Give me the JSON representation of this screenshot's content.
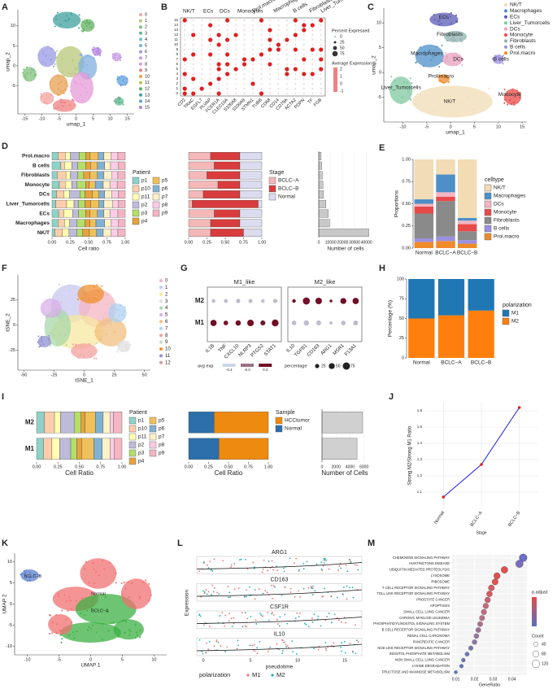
{
  "letters": [
    "A",
    "B",
    "C",
    "D",
    "E",
    "F",
    "G",
    "H",
    "I",
    "J",
    "K",
    "L",
    "M"
  ],
  "A": {
    "xlabel": "umap_1",
    "ylabel": "umap_2",
    "xlim": [
      -17,
      17
    ],
    "ylim": [
      -12,
      14
    ],
    "xticks": [
      -15,
      -10,
      -5,
      0,
      5,
      10,
      15
    ],
    "yticks": [
      -5,
      0,
      5,
      10
    ],
    "clusters": [
      "0",
      "1",
      "2",
      "3",
      "4",
      "5",
      "6",
      "7",
      "8",
      "9",
      "10",
      "11",
      "12",
      "13",
      "14",
      "15"
    ],
    "colors": [
      "#f4a6a0",
      "#b8c77a",
      "#7fbf7b",
      "#5fb88f",
      "#6cc3c9",
      "#7fb0e0",
      "#9b9be6",
      "#c79be6",
      "#e69bd6",
      "#f08080",
      "#e6a050",
      "#c0c040",
      "#60b060",
      "#40a0a0",
      "#60a0e0",
      "#b080e0"
    ]
  },
  "B": {
    "groups": [
      "NK/T",
      "ECs",
      "DCs",
      "Monocytes",
      "Prol.macro",
      "Macrophages",
      "B cells",
      "Fibroblasts",
      "Liver_Tumorcells"
    ],
    "genes": [
      "CD2",
      "TRAC",
      "EGFL7",
      "PLVAP",
      "FCER1A",
      "CLEC10A",
      "S100A8",
      "S100A9",
      "STMN1",
      "TUBB",
      "CD68",
      "CD14",
      "CD79A",
      "ACTA2",
      "PDPN",
      "TF",
      "FGB"
    ],
    "rows": [
      "0",
      "1",
      "2",
      "3",
      "4",
      "5",
      "6",
      "7",
      "8",
      "9",
      "10",
      "11",
      "12",
      "13",
      "14",
      "15"
    ],
    "size_title": "Percent Expressed",
    "size_ticks": [
      "0",
      "25",
      "50",
      "75"
    ],
    "color_title": "Average Expression",
    "color_ticks": [
      "2",
      "1",
      "0",
      "-1"
    ]
  },
  "C": {
    "xlabel": "umap_1",
    "ylabel": "umap_2",
    "xlim": [
      -14,
      16
    ],
    "ylim": [
      -10,
      13
    ],
    "xticks": [
      -10,
      -5,
      0,
      5,
      10,
      15
    ],
    "yticks": [
      -5,
      0,
      5,
      10
    ],
    "celltypes": [
      "NK/T",
      "Macrophages",
      "ECs",
      "Liver_Tumorcells",
      "DCs",
      "Monocyte",
      "Fibroblasts",
      "B cells",
      "Prol.macro"
    ],
    "colors": [
      "#f1dcb6",
      "#4e8fc7",
      "#5b5bb5",
      "#7fc8a0",
      "#e8a0c0",
      "#e84a4a",
      "#8fb0b0",
      "#9b8fe0",
      "#f08a2a"
    ]
  },
  "F": {
    "xlabel": "tSNE_1",
    "ylabel": "tSNE_2",
    "xlim": [
      -55,
      55
    ],
    "ylim": [
      -45,
      50
    ],
    "xticks": [
      -50,
      -25,
      0,
      25,
      50
    ],
    "yticks": [
      -25,
      0,
      25
    ],
    "clusters": [
      "0",
      "1",
      "2",
      "3",
      "4",
      "5",
      "6",
      "7",
      "8",
      "9",
      "10",
      "11",
      "12"
    ],
    "colors": [
      "#f4b6c2",
      "#c8c8f0",
      "#f8e8a0",
      "#e0e0e0",
      "#a8d8a8",
      "#d8b0e8",
      "#f0c080",
      "#b0d0f0",
      "#f4a0a0",
      "#c0e0c0",
      "#f09030",
      "#9090d0",
      "#d0a0a0"
    ]
  },
  "K": {
    "xlabel": "UMAP 1",
    "ylabel": "UMAP 2",
    "xlim": [
      -12,
      12
    ],
    "ylim": [
      -12,
      12
    ],
    "xticks": [
      -10,
      -5,
      0,
      5,
      10
    ],
    "yticks": [
      -10,
      -5,
      0,
      5,
      10
    ],
    "groups": [
      "BCLC−B",
      "Normal",
      "BCLC−A"
    ],
    "colors": [
      "#5b7fd0",
      "#f07070",
      "#3cb043"
    ]
  },
  "L": {
    "genes": [
      "ARG1",
      "CD163",
      "CSF1R",
      "IL10"
    ],
    "ylabel": "Expression",
    "xlabel": "pseudotime",
    "xticks": [
      "0",
      "5",
      "10",
      "15"
    ],
    "legend_title": "polarization",
    "groups": [
      "M1",
      "M2"
    ],
    "colors": [
      "#f07070",
      "#20b0b0"
    ]
  },
  "chart_data": [
    {
      "type": "stacked_bar",
      "ylabel": "Proportions",
      "legend_title": "celltype",
      "categories": [
        "Normal",
        "BCLC−A",
        "BCLC−B"
      ],
      "ylim": [
        0,
        1
      ],
      "yticks": [
        {
          "value": 0,
          "label": "0.00"
        },
        0.25,
        {
          "value": 0.5,
          "label": "0.50"
        },
        0.75,
        {
          "value": 1,
          "label": "1.00"
        }
      ],
      "series": [
        {
          "name": "NK/T",
          "color": "#f1dcb6",
          "values": [
            0.45,
            0.17,
            0.66
          ]
        },
        {
          "name": "Macrophages",
          "color": "#4e8fc7",
          "values": [
            0.05,
            0.2,
            0.03
          ]
        },
        {
          "name": "DCs",
          "color": "#f4b6c2",
          "values": [
            0.03,
            0.05,
            0.04
          ]
        },
        {
          "name": "Monocyte",
          "color": "#e84a4a",
          "values": [
            0.08,
            0.05,
            0.08
          ]
        },
        {
          "name": "Fibroblasts",
          "color": "#8a8a8a",
          "values": [
            0.28,
            0.4,
            0.1
          ]
        },
        {
          "name": "B cells",
          "color": "#9b8fe0",
          "values": [
            0.04,
            0.05,
            0.04
          ]
        },
        {
          "name": "Prol.macro",
          "color": "#f08a2a",
          "values": [
            0.07,
            0.08,
            0.05
          ]
        }
      ]
    },
    {
      "type": "stacked_bar",
      "ylabel": "Percentage (%)",
      "legend_title": "polarization",
      "categories": [
        "Normal",
        "BCLC−A",
        "BCLC−B"
      ],
      "ylim": [
        0,
        100
      ],
      "yticks": [
        0,
        25,
        50,
        75,
        100
      ],
      "series": [
        {
          "name": "M1",
          "color": "#1f77b4",
          "values": [
            50,
            46,
            40
          ]
        },
        {
          "name": "M2",
          "color": "#ff7f0e",
          "values": [
            50,
            54,
            60
          ]
        }
      ]
    },
    {
      "type": "line",
      "xlabel": "Stage",
      "ylabel": "Strong M2/Strong M1 Ratio",
      "categories": [
        "Normal",
        "BCLC−A",
        "BCLC−B"
      ],
      "values": [
        1.07,
        1.27,
        1.62
      ],
      "color": "#2020e0",
      "point_color": "#e02020",
      "ylim": [
        1.0,
        1.65
      ],
      "yticks": [
        1.1,
        1.2,
        1.3,
        1.4,
        1.5,
        1.6
      ],
      "grid": true
    },
    {
      "type": "dot_scatter",
      "xlabel": "GeneRatio",
      "xlim": [
        0.008,
        0.048
      ],
      "xticks": [
        0.01,
        0.02,
        0.03,
        0.04
      ],
      "categories": [
        "CHEMOKINE SIGNALING PATHWAY",
        "HUNTINGTONS DISEASE",
        "UBIQUITIN MEDIATED PROTEOLYSIS",
        "LYSOSOME",
        "RIBOSOME",
        "T CELL RECEPTOR SIGNALING PATHWAY",
        "TOLL LIKE RECEPTOR SIGNALING PATHWAY",
        "PROSTATE CANCER",
        "APOPTOSIS",
        "SMALL CELL LUNG CANCER",
        "CHRONIC MYELOID LEUKEMIA",
        "PHOSPHATIDYLINOSITOL SIGNALING SYSTEM",
        "B CELL RECEPTOR SIGNALING PATHWAY",
        "RENAL CELL CARCINOMA",
        "PANCREATIC CANCER",
        "NOD LIKE RECEPTOR SIGNALING PATHWAY",
        "INOSITOL PHOSPHATE METABOLISM",
        "NON SMALL CELL LUNG CANCER",
        "LYSINE DEGRADATION",
        "FRUCTOSE AND MANNOSE METABOLISM"
      ],
      "values": [
        0.046,
        0.044,
        0.036,
        0.032,
        0.031,
        0.029,
        0.028,
        0.027,
        0.026,
        0.025,
        0.024,
        0.023,
        0.022,
        0.021,
        0.02,
        0.018,
        0.016,
        0.014,
        0.013,
        0.01
      ],
      "sizes": [
        120,
        110,
        90,
        80,
        75,
        70,
        65,
        62,
        60,
        58,
        55,
        52,
        50,
        48,
        45,
        40,
        35,
        30,
        28,
        20
      ],
      "colors": [
        "#7070c8",
        "#7a6cc0",
        "#e05050",
        "#e05050",
        "#e25252",
        "#d85a60",
        "#d85a60",
        "#d06070",
        "#c86878",
        "#c06c80",
        "#b87088",
        "#b07090",
        "#a07498",
        "#9878a0",
        "#8878a8",
        "#7878b0",
        "#6c78b8",
        "#6478c0",
        "#5c78c4",
        "#5478c8"
      ],
      "legend_color_title": "p.adjust",
      "colorbar": [
        "#e64a4a",
        "#5b6fc4"
      ],
      "legend_size_title": "Count",
      "size_ticks": [
        40,
        80,
        120
      ]
    },
    {
      "type": "hbar_stack",
      "xlabel": "Cell ratio",
      "legend_title": "Patient",
      "categories": [
        "Prol.macro",
        "B cells",
        "Fibroblasts",
        "Monocyte",
        "DCs",
        "Liver_Tumorcells",
        "ECs",
        "Macrophages",
        "NK/T"
      ],
      "xlim": [
        0,
        1
      ],
      "xticks": [
        {
          "value": 0,
          "label": "0.00"
        },
        0.25,
        {
          "value": 0.5,
          "label": "0.50"
        },
        0.75,
        {
          "value": 1,
          "label": "1.00"
        }
      ],
      "series": [
        {
          "name": "p1",
          "color": "#8dd3c7",
          "values": [
            0.08,
            0.12,
            0.07,
            0.1,
            0.06,
            0.05,
            0.09,
            0.08,
            0.04
          ]
        },
        {
          "name": "p10",
          "color": "#fdcdac",
          "values": [
            0.1,
            0.05,
            0.12,
            0.08,
            0.1,
            0.15,
            0.07,
            0.09,
            0.1
          ]
        },
        {
          "name": "p11",
          "color": "#ffffb3",
          "values": [
            0.07,
            0.1,
            0.06,
            0.09,
            0.08,
            0.1,
            0.12,
            0.07,
            0.09
          ]
        },
        {
          "name": "p2",
          "color": "#bebada",
          "values": [
            0.12,
            0.08,
            0.1,
            0.07,
            0.14,
            0.06,
            0.08,
            0.1,
            0.11
          ]
        },
        {
          "name": "p3",
          "color": "#b3de69",
          "values": [
            0.09,
            0.11,
            0.08,
            0.12,
            0.07,
            0.09,
            0.1,
            0.11,
            0.08
          ]
        },
        {
          "name": "p4",
          "color": "#e6a23c",
          "values": [
            0.06,
            0.07,
            0.09,
            0.05,
            0.1,
            0.08,
            0.06,
            0.07,
            0.09
          ]
        },
        {
          "name": "p5",
          "color": "#f0c05a",
          "values": [
            0.11,
            0.09,
            0.1,
            0.08,
            0.09,
            0.11,
            0.1,
            0.08,
            0.1
          ]
        },
        {
          "name": "p6",
          "color": "#80b1d3",
          "values": [
            0.08,
            0.1,
            0.09,
            0.11,
            0.08,
            0.07,
            0.09,
            0.12,
            0.09
          ]
        },
        {
          "name": "p7",
          "color": "#fff2c8",
          "values": [
            0.1,
            0.08,
            0.11,
            0.09,
            0.1,
            0.12,
            0.08,
            0.09,
            0.11
          ]
        },
        {
          "name": "p8",
          "color": "#fccde5",
          "values": [
            0.09,
            0.11,
            0.08,
            0.1,
            0.09,
            0.08,
            0.11,
            0.1,
            0.09
          ]
        },
        {
          "name": "p9",
          "color": "#f4b6c2",
          "values": [
            0.1,
            0.09,
            0.1,
            0.11,
            0.09,
            0.09,
            0.1,
            0.09,
            0.1
          ]
        }
      ]
    },
    {
      "type": "hbar_stack",
      "legend_title": "Stage",
      "xlim": [
        0,
        1
      ],
      "xticks": [
        {
          "value": 0,
          "label": "0.00"
        },
        0.25,
        {
          "value": 0.5,
          "label": "0.50"
        },
        0.75,
        {
          "value": 1,
          "label": "1.00"
        }
      ],
      "series": [
        {
          "name": "BCLC−A",
          "color": "#f4b8b8",
          "values": [
            0.3,
            0.35,
            0.25,
            0.4,
            0.2,
            0.05,
            0.35,
            0.3,
            0.3
          ]
        },
        {
          "name": "BCLC−B",
          "color": "#d83c3c",
          "values": [
            0.4,
            0.35,
            0.45,
            0.3,
            0.5,
            0.9,
            0.35,
            0.4,
            0.45
          ]
        },
        {
          "name": "Normal",
          "color": "#dcdcf0",
          "values": [
            0.3,
            0.3,
            0.3,
            0.3,
            0.3,
            0.05,
            0.3,
            0.3,
            0.25
          ]
        }
      ]
    },
    {
      "type": "hbar",
      "xlabel": "Number of cells",
      "color": "#c8c8c8",
      "xlim": [
        0,
        45000
      ],
      "xticks": [
        0,
        10000,
        20000,
        30000,
        40000
      ],
      "values": [
        2000,
        2500,
        3000,
        3500,
        4000,
        6000,
        8000,
        9000,
        42000
      ]
    },
    {
      "type": "hbar_stack",
      "xlabel": "Cell Ratio",
      "legend_title": "Patient",
      "categories": [
        "M2",
        "M1"
      ],
      "xlim": [
        0,
        1
      ],
      "xticks": [
        {
          "value": 0,
          "label": "0.00"
        },
        0.25,
        {
          "value": 0.5,
          "label": "0.50"
        },
        0.75,
        {
          "value": 1,
          "label": "1.00"
        }
      ],
      "series": [
        {
          "name": "p1",
          "color": "#8dd3c7",
          "values": [
            0.09,
            0.08
          ]
        },
        {
          "name": "p10",
          "color": "#fdcdac",
          "values": [
            0.12,
            0.1
          ]
        },
        {
          "name": "p11",
          "color": "#ffffb3",
          "values": [
            0.07,
            0.09
          ]
        },
        {
          "name": "p2",
          "color": "#bebada",
          "values": [
            0.16,
            0.13
          ]
        },
        {
          "name": "p3",
          "color": "#b3de69",
          "values": [
            0.08,
            0.07
          ]
        },
        {
          "name": "p4",
          "color": "#e6a23c",
          "values": [
            0.05,
            0.06
          ]
        },
        {
          "name": "p5",
          "color": "#f0c05a",
          "values": [
            0.12,
            0.14
          ]
        },
        {
          "name": "p6",
          "color": "#80b1d3",
          "values": [
            0.09,
            0.1
          ]
        },
        {
          "name": "p7",
          "color": "#fff2c8",
          "values": [
            0.08,
            0.09
          ]
        },
        {
          "name": "p8",
          "color": "#fccde5",
          "values": [
            0.04,
            0.05
          ]
        },
        {
          "name": "p9",
          "color": "#f4b6c2",
          "values": [
            0.1,
            0.09
          ]
        }
      ]
    },
    {
      "type": "hbar_stack",
      "xlabel": "Cell Ratio",
      "legend_title": "Sample",
      "stack": "reverse",
      "xlim": [
        0,
        1
      ],
      "xticks": [
        {
          "value": 0,
          "label": "0.00"
        },
        0.25,
        {
          "value": 0.5,
          "label": "0.50"
        },
        0.75,
        {
          "value": 1,
          "label": "1.00"
        }
      ],
      "series": [
        {
          "name": "HCCtumor",
          "color": "#ef8a10",
          "values": [
            0.68,
            0.62
          ]
        },
        {
          "name": "Normal",
          "color": "#2c6faa",
          "values": [
            0.32,
            0.38
          ]
        }
      ]
    },
    {
      "type": "hbar",
      "xlabel": "Number of Cells",
      "color": "#d0d0d0",
      "xlim": [
        0,
        6500
      ],
      "xticks": [
        0,
        2000,
        4000,
        6000
      ],
      "values": [
        5800,
        5000
      ]
    },
    {
      "type": "dot",
      "facets": [
        {
          "title": "M1_like",
          "genes": [
            "IL1B",
            "TNF",
            "CXCL10",
            "NLRP3",
            "PTGS2",
            "STAT1"
          ]
        },
        {
          "title": "M2_like",
          "genes": [
            "IL10",
            "TGFB1",
            "CD163",
            "ARG1",
            "MSR1",
            "F13A1"
          ]
        }
      ],
      "series": [
        {
          "name": "M2",
          "values": [
            -0.3,
            -0.3,
            -0.28,
            -0.3,
            -0.32,
            -0.3,
            0.4,
            0.38,
            0.4,
            0.36,
            0.4,
            0.4
          ],
          "sizes": [
            20,
            22,
            25,
            24,
            20,
            26,
            18,
            70,
            60,
            12,
            50,
            55
          ]
        },
        {
          "name": "M1",
          "values": [
            0.4,
            0.38,
            0.4,
            0.4,
            0.36,
            0.4,
            -0.3,
            -0.3,
            -0.3,
            -0.32,
            -0.3,
            -0.28
          ],
          "sizes": [
            55,
            30,
            40,
            60,
            35,
            65,
            30,
            40,
            35,
            15,
            30,
            32
          ]
        }
      ],
      "clim": [
        -0.45,
        0.45
      ],
      "color_low": "#cfe3f3",
      "color_high": "#6b0019",
      "legend_color_title": "avg exp",
      "color_ticks": [
        -0.4,
        {
          "value": 0,
          "label": "-0.0"
        },
        0.4
      ],
      "legend_size_title": "percentage",
      "size_ticks": [
        25,
        50,
        75
      ]
    }
  ]
}
